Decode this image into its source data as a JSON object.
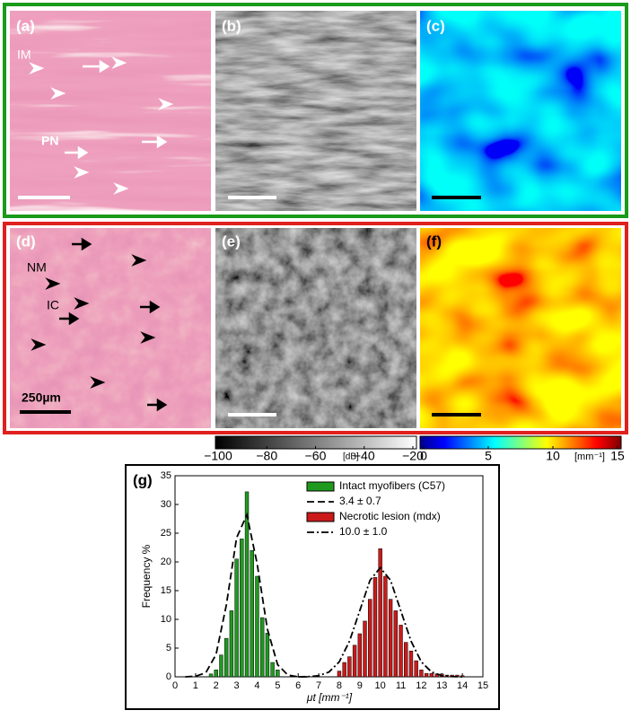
{
  "panels": [
    {
      "label": "(a)",
      "annotations": [
        "IM",
        "PN"
      ]
    },
    {
      "label": "(b)"
    },
    {
      "label": "(c)"
    },
    {
      "label": "(d)",
      "annotations": [
        "NM",
        "IC"
      ],
      "scale_label": "250µm"
    },
    {
      "label": "(e)"
    },
    {
      "label": "(f)"
    }
  ],
  "colorbars": [
    {
      "lim": [
        -100,
        -20
      ],
      "ticks": [
        {
          "value": -100,
          "label": "−100"
        },
        {
          "value": -80,
          "label": "−80"
        },
        {
          "value": -60,
          "label": "−60"
        },
        {
          "value": -40,
          "label": "−40"
        },
        {
          "value": -20,
          "label": "−20"
        }
      ],
      "unit": "[dB]"
    },
    {
      "lim": [
        0,
        15
      ],
      "ticks": [
        0,
        5,
        10,
        15
      ],
      "unit": "[mm⁻¹]"
    }
  ],
  "chart_data": {
    "type": "histogram",
    "panel_label": "(g)",
    "xlabel": "μt [mm⁻¹]",
    "ylabel": "Frequency %",
    "xlim": [
      0,
      15
    ],
    "ylim": [
      0,
      35
    ],
    "xticks": [
      0,
      1,
      2,
      3,
      4,
      5,
      6,
      7,
      8,
      9,
      10,
      11,
      12,
      13,
      14,
      15
    ],
    "yticks": [
      0,
      5,
      10,
      15,
      20,
      25,
      30,
      35
    ],
    "legend": "upper right",
    "series": [
      {
        "name": "Intact myofibers (C57)",
        "kind": "bar",
        "color": "#1f9a1f",
        "x": [
          1.75,
          2,
          2.25,
          2.5,
          2.75,
          3,
          3.25,
          3.5,
          3.75,
          4,
          4.25,
          4.5,
          4.75,
          5
        ],
        "values": [
          0.5,
          1.2,
          3.8,
          6.7,
          11.5,
          20.5,
          24,
          32.2,
          22,
          17.5,
          10.3,
          7.6,
          2.5,
          1.2
        ]
      },
      {
        "name": "3.4 ± 0.7",
        "kind": "line",
        "color": "#000000",
        "dash": "8 4",
        "x": [
          0.5,
          1,
          1.5,
          2,
          2.5,
          3,
          3.5,
          4,
          4.5,
          5,
          5.5,
          6,
          6.5
        ],
        "values": [
          0,
          0.1,
          0.7,
          3.9,
          12.5,
          24.2,
          28.2,
          19.7,
          8.3,
          2.1,
          0.3,
          0,
          0
        ]
      },
      {
        "name": "Necrotic lesion (mdx)",
        "kind": "bar",
        "color": "#cc1a1a",
        "x": [
          8,
          8.25,
          8.5,
          8.75,
          9,
          9.25,
          9.5,
          9.75,
          10,
          10.25,
          10.5,
          10.75,
          11,
          11.25,
          11.5,
          11.75,
          12,
          12.25,
          12.5,
          12.75,
          13,
          13.25,
          13.5,
          13.75,
          14
        ],
        "values": [
          1,
          2.5,
          3.5,
          5.5,
          7.5,
          9.7,
          13.5,
          17.3,
          22.3,
          17.5,
          13.5,
          11.5,
          9,
          6,
          4.5,
          2.8,
          1.2,
          0.6,
          0.6,
          0.5,
          0.5,
          0.3,
          0.3,
          0.3,
          0.2
        ]
      },
      {
        "name": "10.0 ± 1.0",
        "kind": "line",
        "color": "#000000",
        "dash": "8 3 2 3",
        "x": [
          6,
          6.5,
          7,
          7.5,
          8,
          8.5,
          9,
          9.5,
          10,
          10.5,
          11,
          11.5,
          12,
          12.5,
          13,
          13.5,
          14
        ],
        "values": [
          0,
          0.04,
          0.2,
          0.83,
          2.6,
          6.2,
          11.5,
          16.8,
          19,
          16.8,
          11.5,
          6.2,
          2.6,
          0.83,
          0.2,
          0.04,
          0
        ]
      }
    ]
  }
}
